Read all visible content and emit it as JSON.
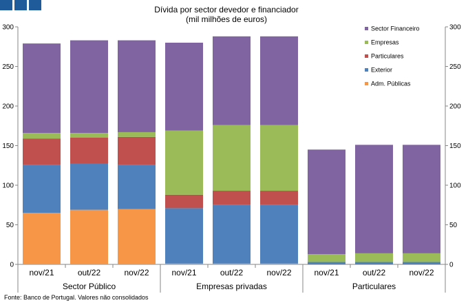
{
  "chart_data": {
    "type": "bar",
    "stacked": true,
    "title": "Dívida por sector devedor e financiador",
    "subtitle": "(mil milhões de euros)",
    "ylim": [
      0,
      300
    ],
    "yticks": [
      0,
      50,
      100,
      150,
      200,
      250,
      300
    ],
    "categories": [
      "nov/21",
      "out/22",
      "nov/22",
      "nov/21",
      "out/22",
      "nov/22",
      "nov/21",
      "out/22",
      "nov/22"
    ],
    "groups": [
      {
        "label": "Sector Público",
        "start": 0,
        "end": 2
      },
      {
        "label": "Empresas privadas",
        "start": 3,
        "end": 5
      },
      {
        "label": "Particulares",
        "start": 6,
        "end": 8
      }
    ],
    "series": [
      {
        "name": "Adm. Públicas",
        "color": "#f79646",
        "values": [
          65,
          69,
          70,
          1,
          1,
          1,
          0,
          0,
          0
        ]
      },
      {
        "name": "Exterior",
        "color": "#4f81bd",
        "values": [
          61,
          58,
          56,
          70,
          74,
          74,
          3,
          3,
          3
        ]
      },
      {
        "name": "Particulares",
        "color": "#c0504d",
        "values": [
          33,
          33,
          35,
          17,
          18,
          18,
          0,
          0,
          0
        ]
      },
      {
        "name": "Empresas",
        "color": "#9bbb59",
        "values": [
          7,
          6,
          6,
          81,
          83,
          83,
          10,
          11,
          11
        ]
      },
      {
        "name": "Sector Financeiro",
        "color": "#8064a2",
        "values": [
          113,
          117,
          116,
          111,
          112,
          112,
          132,
          137,
          137
        ]
      }
    ],
    "legend_position": "top-right",
    "legend_order": [
      "Sector Financeiro",
      "Empresas",
      "Particulares",
      "Exterior",
      "Adm. Públicas"
    ]
  },
  "footer": {
    "source": "Fonte: Banco de Portugal. Valores não consolidados"
  }
}
